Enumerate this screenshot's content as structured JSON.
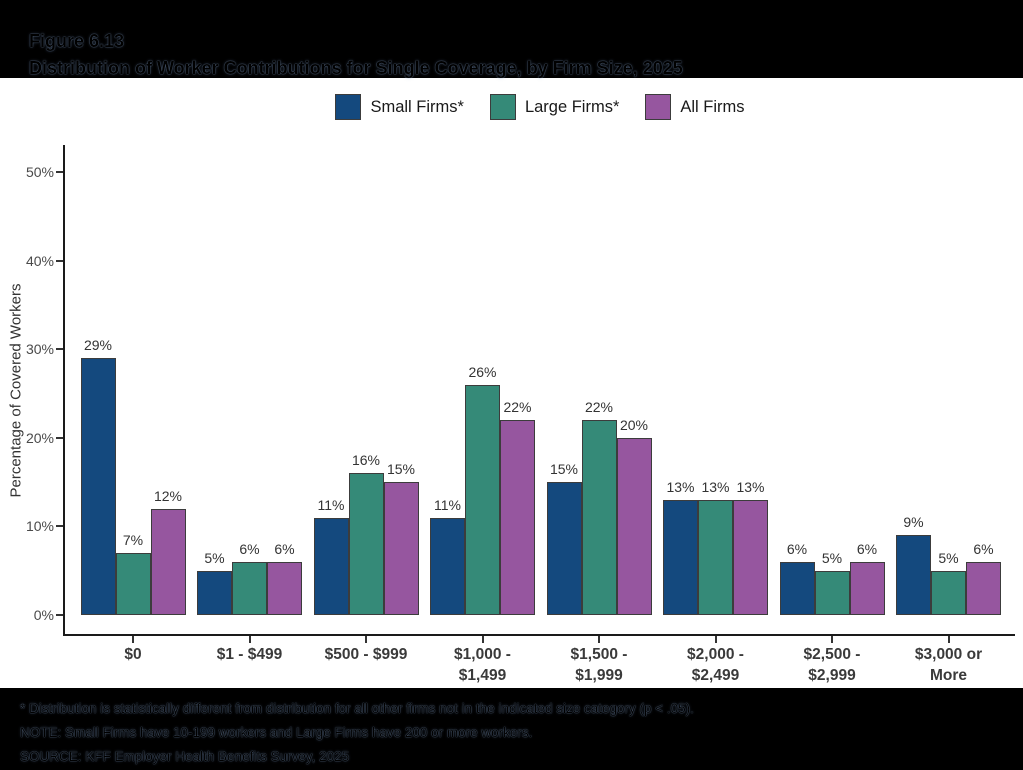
{
  "header": {
    "figure_label": "Figure 6.13",
    "title": "Distribution of Worker Contributions for Single Coverage, by Firm Size, 2025"
  },
  "chart_data": {
    "type": "bar",
    "title": "Distribution of Worker Contributions for Single Coverage, by Firm Size, 2025",
    "categories": [
      "$0",
      "$1 - $499",
      "$500 - $999",
      "$1,000 -\n$1,499",
      "$1,500 -\n$1,999",
      "$2,000 -\n$2,499",
      "$2,500 -\n$2,999",
      "$3,000 or\nMore"
    ],
    "series": [
      {
        "name": "Small Firms*",
        "color": "#14497E",
        "values": [
          29,
          5,
          11,
          11,
          15,
          13,
          6,
          9
        ]
      },
      {
        "name": "Large Firms*",
        "color": "#358A78",
        "values": [
          7,
          6,
          16,
          26,
          22,
          13,
          5,
          5
        ]
      },
      {
        "name": "All Firms",
        "color": "#96569F",
        "values": [
          12,
          6,
          15,
          22,
          20,
          13,
          6,
          6
        ]
      }
    ],
    "ylabel": "Percentage of Covered Workers",
    "xlabel": "",
    "ylim": [
      0,
      50
    ],
    "y_tick_labels": [
      "0%",
      "10%",
      "20%",
      "30%",
      "40%",
      "50%"
    ],
    "grid": false,
    "legend_position": "top",
    "bar_border_color": "#3C3C3C",
    "axis_color": "#1a1a1a",
    "value_label_suffix": "%"
  },
  "footnotes": {
    "line1": "* Distribution is statistically different from distribution for all other firms not in the indicated size category (p < .05).",
    "line2": "NOTE: Small Firms have 10-199 workers and Large Firms have 200 or more workers.",
    "line3": "SOURCE: KFF Employer Health Benefits Survey, 2025"
  }
}
